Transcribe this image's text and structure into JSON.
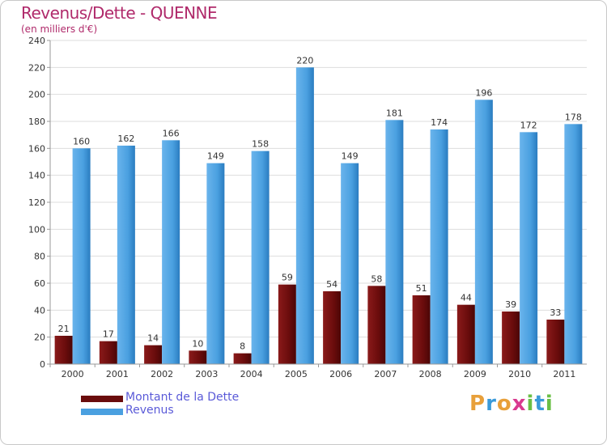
{
  "title": "Revenus/Dette - QUENNE",
  "subtitle": "(en milliers d'€)",
  "logo": {
    "letters": [
      "P",
      "r",
      "o",
      "x",
      "i",
      "t",
      "i"
    ],
    "colors": [
      "#e8a03a",
      "#3a9ad9",
      "#e8a03a",
      "#d93a8f",
      "#6abf45",
      "#3a9ad9",
      "#6abf45"
    ]
  },
  "colors": {
    "dette": "#7a1010",
    "revenus": "#4aa0e0",
    "title": "#b02a6b",
    "legend_text": "#5a5ad8"
  },
  "chart_data": {
    "type": "bar",
    "title": "Revenus/Dette - QUENNE",
    "ylabel": "(en milliers d'€)",
    "ylim": [
      0,
      240
    ],
    "yticks": [
      0,
      20,
      40,
      60,
      80,
      100,
      120,
      140,
      160,
      180,
      200,
      220,
      240
    ],
    "categories": [
      "2000",
      "2001",
      "2002",
      "2003",
      "2004",
      "2005",
      "2006",
      "2007",
      "2008",
      "2009",
      "2010",
      "2011"
    ],
    "series": [
      {
        "name": "Montant de la Dette",
        "values": [
          21,
          17,
          14,
          10,
          8,
          59,
          54,
          58,
          51,
          44,
          39,
          33
        ]
      },
      {
        "name": "Revenus",
        "values": [
          160,
          162,
          166,
          149,
          158,
          220,
          149,
          181,
          174,
          196,
          172,
          178
        ]
      }
    ],
    "grid": true,
    "legend": "bottom-left"
  }
}
